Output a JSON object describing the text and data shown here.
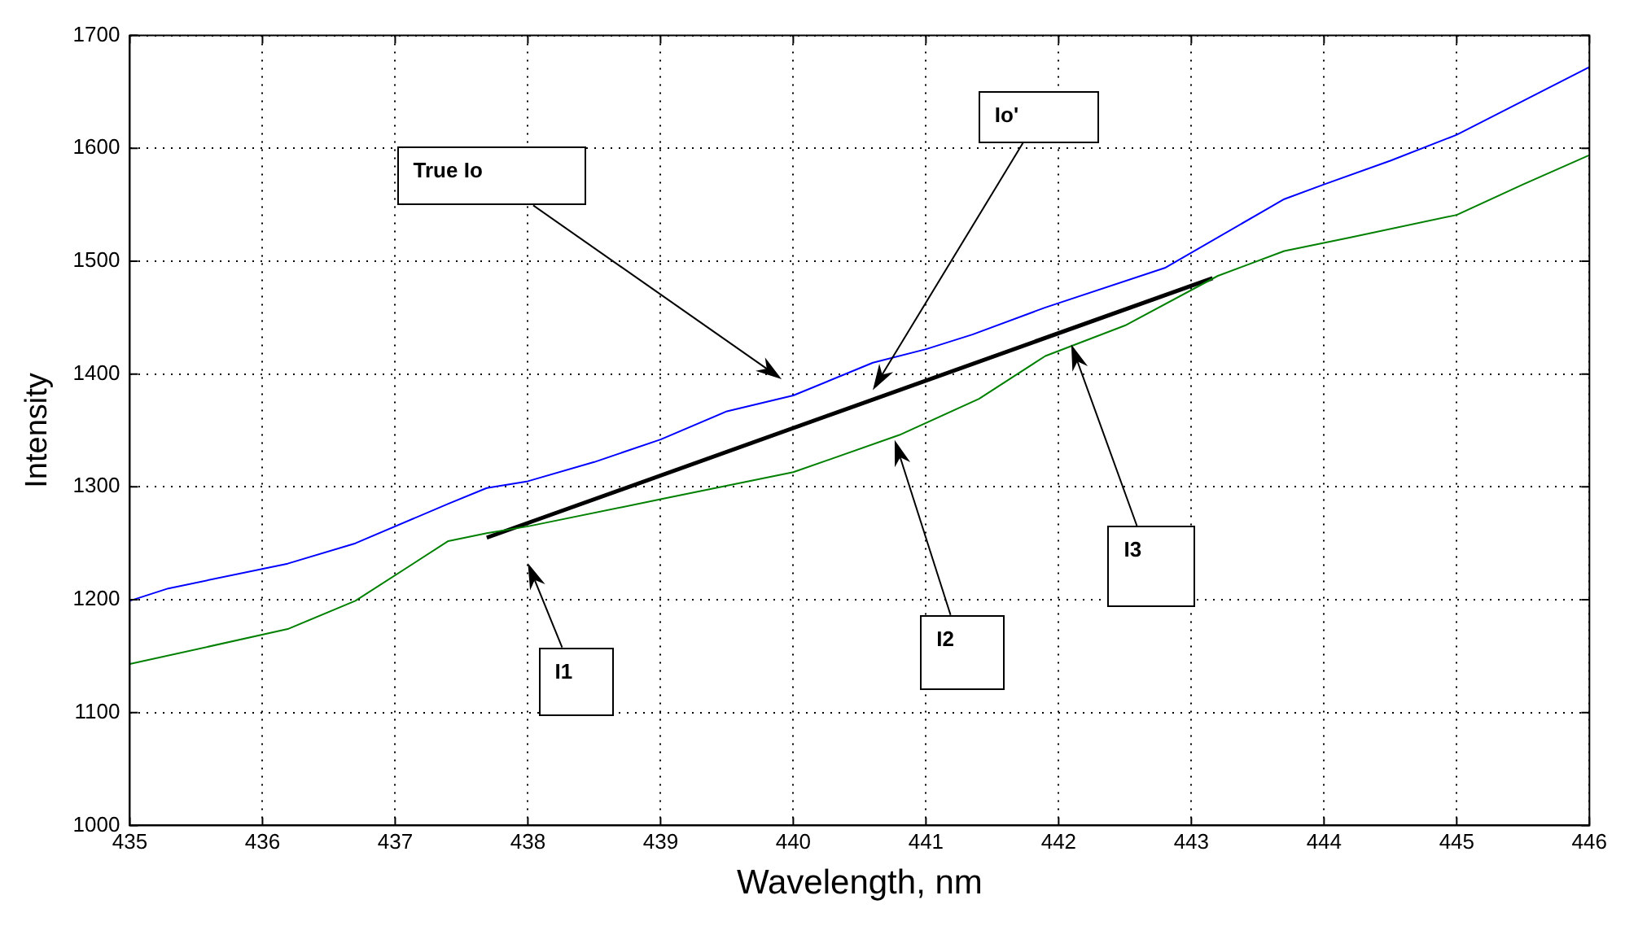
{
  "chart_data": {
    "type": "line",
    "xlabel": "Wavelength, nm",
    "ylabel": "Intensity",
    "xlim": [
      435,
      446
    ],
    "xticks": [
      435,
      436,
      437,
      438,
      439,
      440,
      441,
      442,
      443,
      444,
      445,
      446
    ],
    "ylim": [
      1000,
      1700
    ],
    "yticks": [
      1000,
      1100,
      1200,
      1300,
      1400,
      1500,
      1600,
      1700
    ],
    "grid": true,
    "legend": false,
    "marker": "none",
    "line_style": "solid",
    "series": [
      {
        "color": "#0000ff",
        "x": [
          435,
          435.29,
          436.19,
          436.7,
          437.4,
          437.69,
          438,
          438.5,
          439,
          439.5,
          440,
          440.6,
          441,
          441.35,
          441.9,
          442.8,
          443.7,
          444,
          444.5,
          445,
          446
        ],
        "values": [
          1199,
          1210,
          1232,
          1250,
          1285,
          1299,
          1305,
          1322,
          1342,
          1367,
          1381,
          1410,
          1422,
          1435,
          1459,
          1494,
          1555,
          1568,
          1589,
          1612,
          1672
        ]
      },
      {
        "color": "#008000",
        "x": [
          435,
          436.19,
          436.7,
          437.4,
          437.69,
          438,
          439,
          440,
          440.8,
          441.4,
          441.9,
          442.5,
          443.2,
          443.7,
          444.2,
          445,
          445.5,
          446
        ],
        "values": [
          1143,
          1174,
          1199,
          1252,
          1259,
          1265,
          1289,
          1313,
          1346,
          1378,
          1416,
          1443,
          1487,
          1509,
          1521,
          1541,
          1568,
          1594
        ]
      },
      {
        "color": "#000000",
        "x": [
          437.69,
          443.16
        ],
        "values": [
          1255,
          1485
        ]
      }
    ],
    "annotations": [
      "True Io",
      "Io'",
      "I1",
      "I2",
      "I3"
    ]
  }
}
